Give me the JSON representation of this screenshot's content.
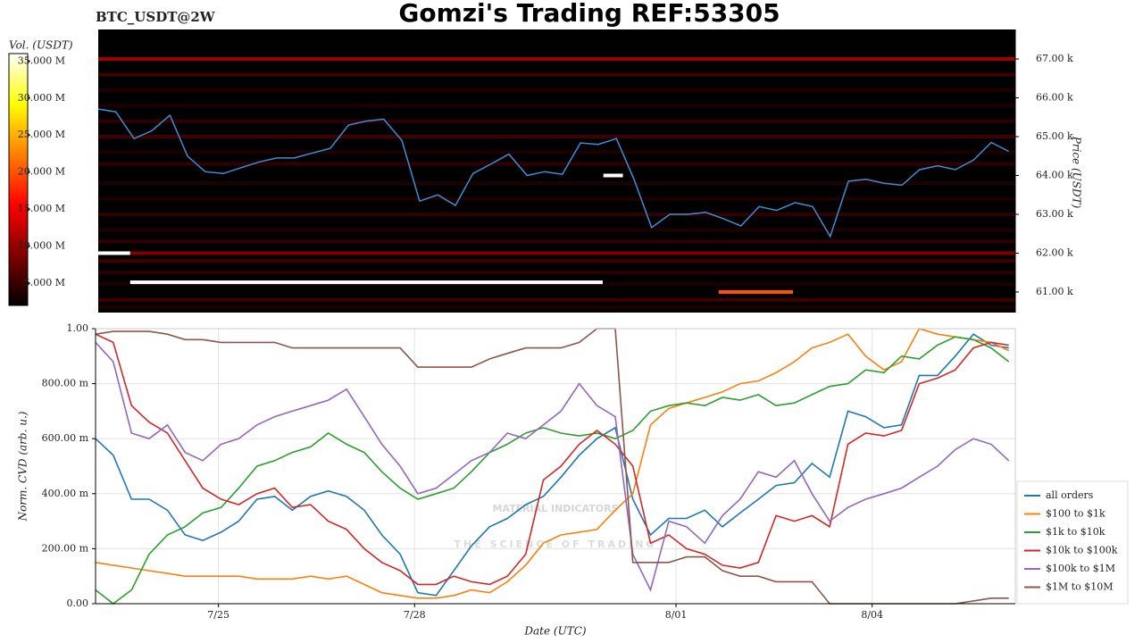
{
  "chart_data": [
    {
      "type": "heatmap",
      "title": "Gomzi's Trading REF:53305",
      "label": "BTC_USDT@2W",
      "ylabel": "Price (USDT)",
      "colorbar_label": "Vol. (USDT)",
      "xlim": [
        23.12,
        37.19
      ],
      "ylim": [
        60470,
        67760
      ],
      "yticks": [
        {
          "value": 61000,
          "label": "61.00 k"
        },
        {
          "value": 62000,
          "label": "62.00 k"
        },
        {
          "value": 63000,
          "label": "63.00 k"
        },
        {
          "value": 64000,
          "label": "64.00 k"
        },
        {
          "value": 65000,
          "label": "65.00 k"
        },
        {
          "value": 66000,
          "label": "66.00 k"
        },
        {
          "value": 67000,
          "label": "67.00 k"
        }
      ],
      "clim": [
        2000000,
        36000000
      ],
      "cticks": [
        {
          "value": 5000000,
          "label": "5.000 M"
        },
        {
          "value": 10000000,
          "label": "10.000 M"
        },
        {
          "value": 15000000,
          "label": "15.000 M"
        },
        {
          "value": 20000000,
          "label": "20.000 M"
        },
        {
          "value": 25000000,
          "label": "25.000 M"
        },
        {
          "value": 30000000,
          "label": "30.000 M"
        },
        {
          "value": 35000000,
          "label": "35.000 M"
        }
      ],
      "heatmap": {
        "prices": [
          67000,
          66600,
          66200,
          65800,
          65400,
          65000,
          64600,
          64300,
          63800,
          63400,
          63000,
          62600,
          62300,
          62000,
          61800,
          61500,
          61200,
          60800,
          60600
        ],
        "volumes": [
          12000000,
          6000000,
          4000000,
          4000000,
          5000000,
          6000000,
          4000000,
          5000000,
          4000000,
          4000000,
          5000000,
          4000000,
          5000000,
          10000000,
          6000000,
          5000000,
          4000000,
          6000000,
          4000000
        ]
      },
      "blocks": [
        {
          "price": 62000,
          "start": 23.12,
          "end": 23.61,
          "volume": 40000000
        },
        {
          "price": 61250,
          "start": 23.61,
          "end": 30.86,
          "volume": 40000000
        },
        {
          "price": 64000,
          "start": 30.87,
          "end": 31.17,
          "volume": 40000000
        },
        {
          "price": 61000,
          "start": 32.64,
          "end": 33.78,
          "volume": 20000000
        }
      ],
      "series": [
        {
          "color": "#3a8fd6",
          "x": [
            23.12,
            23.39,
            23.67,
            23.94,
            24.22,
            24.49,
            24.76,
            25.04,
            25.31,
            25.59,
            25.86,
            26.13,
            26.41,
            26.68,
            26.96,
            27.23,
            27.5,
            27.78,
            28.05,
            28.33,
            28.6,
            28.87,
            29.15,
            29.42,
            29.7,
            29.97,
            30.24,
            30.52,
            30.79,
            31.07,
            31.34,
            31.61,
            31.89,
            32.16,
            32.44,
            32.71,
            32.98,
            33.26,
            33.53,
            33.81,
            34.08,
            34.35,
            34.63,
            34.9,
            35.18,
            35.45,
            35.72,
            36.0,
            36.27,
            36.55,
            36.82,
            37.09
          ],
          "values": [
            65710,
            65640,
            64950,
            65150,
            65550,
            64500,
            64100,
            64050,
            64200,
            64350,
            64450,
            64450,
            64580,
            64700,
            65300,
            65400,
            65450,
            64900,
            63340,
            63500,
            63230,
            64050,
            64300,
            64550,
            64000,
            64100,
            64030,
            64840,
            64800,
            64950,
            63900,
            62660,
            63000,
            63000,
            63050,
            62890,
            62700,
            63200,
            63100,
            63300,
            63200,
            62430,
            63850,
            63900,
            63800,
            63750,
            64150,
            64250,
            64150,
            64400,
            64850,
            64620
          ]
        }
      ]
    },
    {
      "type": "line",
      "ylabel": "Norm. CVD (arb. u.)",
      "xlabel": "Date (UTC)",
      "grid": true,
      "legend": "lower right",
      "watermark": {
        "title": "MATERIAL INDICATORS",
        "subtitle": "THE SCIENCE OF TRADING"
      },
      "xlim": [
        23.12,
        37.19
      ],
      "ylim": [
        0,
        1.0
      ],
      "xticks": [
        {
          "value": 25,
          "label": "7/25"
        },
        {
          "value": 28,
          "label": "7/28"
        },
        {
          "value": 32,
          "label": "8/01"
        },
        {
          "value": 35,
          "label": "8/04"
        }
      ],
      "yticks": [
        {
          "value": 0,
          "label": "0.00"
        },
        {
          "value": 0.2,
          "label": "200.00 m"
        },
        {
          "value": 0.4,
          "label": "400.00 m"
        },
        {
          "value": 0.6,
          "label": "600.00 m"
        },
        {
          "value": 0.8,
          "label": "800.00 m"
        },
        {
          "value": 1,
          "label": "1.00"
        }
      ],
      "x": [
        23.12,
        23.39,
        23.67,
        23.94,
        24.22,
        24.49,
        24.76,
        25.04,
        25.31,
        25.59,
        25.86,
        26.13,
        26.41,
        26.68,
        26.96,
        27.23,
        27.5,
        27.78,
        28.05,
        28.33,
        28.6,
        28.87,
        29.15,
        29.42,
        29.7,
        29.97,
        30.24,
        30.52,
        30.79,
        31.07,
        31.34,
        31.61,
        31.89,
        32.16,
        32.44,
        32.71,
        32.98,
        33.26,
        33.53,
        33.81,
        34.08,
        34.35,
        34.63,
        34.9,
        35.18,
        35.45,
        35.72,
        36.0,
        36.27,
        36.55,
        36.82,
        37.09
      ],
      "series": [
        {
          "name": "all orders",
          "color": "#1f77b4",
          "values": [
            0.6,
            0.54,
            0.38,
            0.38,
            0.34,
            0.25,
            0.23,
            0.26,
            0.3,
            0.38,
            0.39,
            0.34,
            0.39,
            0.41,
            0.39,
            0.34,
            0.25,
            0.18,
            0.04,
            0.03,
            0.12,
            0.21,
            0.28,
            0.31,
            0.36,
            0.39,
            0.46,
            0.54,
            0.6,
            0.64,
            0.38,
            0.25,
            0.31,
            0.31,
            0.34,
            0.28,
            0.33,
            0.38,
            0.43,
            0.44,
            0.51,
            0.46,
            0.7,
            0.68,
            0.64,
            0.65,
            0.83,
            0.83,
            0.9,
            0.98,
            0.94,
            0.93
          ]
        },
        {
          "name": "$100 to $1k",
          "color": "#ff7f0e",
          "values": [
            0.15,
            0.14,
            0.13,
            0.12,
            0.11,
            0.1,
            0.1,
            0.1,
            0.1,
            0.09,
            0.09,
            0.09,
            0.1,
            0.09,
            0.1,
            0.07,
            0.04,
            0.03,
            0.02,
            0.02,
            0.03,
            0.05,
            0.04,
            0.08,
            0.14,
            0.22,
            0.25,
            0.26,
            0.27,
            0.34,
            0.4,
            0.65,
            0.71,
            0.73,
            0.75,
            0.77,
            0.8,
            0.81,
            0.84,
            0.88,
            0.93,
            0.95,
            0.98,
            0.9,
            0.85,
            0.88,
            1.0,
            0.98,
            0.97,
            0.96,
            0.95,
            0.92
          ]
        },
        {
          "name": "$1k to $10k",
          "color": "#2ca02c",
          "values": [
            0.05,
            0,
            0.05,
            0.18,
            0.25,
            0.28,
            0.33,
            0.35,
            0.42,
            0.5,
            0.52,
            0.55,
            0.57,
            0.62,
            0.58,
            0.55,
            0.48,
            0.42,
            0.38,
            0.4,
            0.42,
            0.48,
            0.55,
            0.58,
            0.62,
            0.64,
            0.62,
            0.61,
            0.62,
            0.6,
            0.63,
            0.7,
            0.72,
            0.73,
            0.72,
            0.75,
            0.74,
            0.76,
            0.72,
            0.73,
            0.76,
            0.79,
            0.8,
            0.85,
            0.84,
            0.9,
            0.89,
            0.94,
            0.97,
            0.96,
            0.93,
            0.88
          ]
        },
        {
          "name": "$10k to $100k",
          "color": "#d62728",
          "values": [
            0.98,
            0.95,
            0.72,
            0.66,
            0.62,
            0.52,
            0.42,
            0.38,
            0.36,
            0.4,
            0.42,
            0.35,
            0.36,
            0.3,
            0.27,
            0.2,
            0.15,
            0.12,
            0.07,
            0.07,
            0.1,
            0.08,
            0.07,
            0.1,
            0.18,
            0.45,
            0.5,
            0.58,
            0.63,
            0.58,
            0.5,
            0.22,
            0.25,
            0.2,
            0.18,
            0.14,
            0.13,
            0.15,
            0.32,
            0.3,
            0.32,
            0.28,
            0.58,
            0.62,
            0.61,
            0.63,
            0.8,
            0.82,
            0.85,
            0.93,
            0.95,
            0.94
          ]
        },
        {
          "name": "$100k to $1M",
          "color": "#9467bd",
          "values": [
            0.95,
            0.88,
            0.62,
            0.6,
            0.65,
            0.55,
            0.52,
            0.58,
            0.6,
            0.65,
            0.68,
            0.7,
            0.72,
            0.74,
            0.78,
            0.68,
            0.58,
            0.5,
            0.4,
            0.42,
            0.47,
            0.52,
            0.55,
            0.62,
            0.6,
            0.65,
            0.7,
            0.8,
            0.72,
            0.68,
            0.18,
            0.05,
            0.3,
            0.28,
            0.22,
            0.32,
            0.38,
            0.48,
            0.46,
            0.52,
            0.4,
            0.3,
            0.35,
            0.38,
            0.4,
            0.42,
            0.46,
            0.5,
            0.56,
            0.6,
            0.58,
            0.52
          ]
        },
        {
          "name": "$1M to $10M",
          "color": "#8c564b",
          "values": [
            0.98,
            0.99,
            0.99,
            0.99,
            0.98,
            0.96,
            0.96,
            0.95,
            0.95,
            0.95,
            0.95,
            0.93,
            0.93,
            0.93,
            0.93,
            0.93,
            0.93,
            0.93,
            0.86,
            0.86,
            0.86,
            0.86,
            0.89,
            0.91,
            0.93,
            0.93,
            0.93,
            0.95,
            1.0,
            1.0,
            0.15,
            0.15,
            0.15,
            0.17,
            0.17,
            0.12,
            0.1,
            0.1,
            0.08,
            0.08,
            0.08,
            0,
            0,
            0,
            0,
            0,
            0,
            0,
            0,
            0.01,
            0.02,
            0.02
          ]
        }
      ]
    }
  ]
}
